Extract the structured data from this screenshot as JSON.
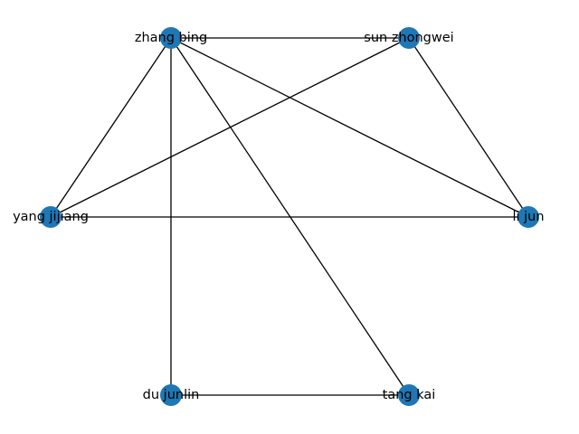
{
  "graph": {
    "node_color": "#1f77b4",
    "edge_color": "#000000",
    "nodes": [
      {
        "id": "zhang bing",
        "label": "zhang bing"
      },
      {
        "id": "sun zhongwei",
        "label": "sun zhongwei"
      },
      {
        "id": "yang jijiang",
        "label": "yang jijiang"
      },
      {
        "id": "li jun",
        "label": "li jun"
      },
      {
        "id": "du junlin",
        "label": "du junlin"
      },
      {
        "id": "tang kai",
        "label": "tang kai"
      }
    ],
    "edges": [
      {
        "source": "zhang bing",
        "target": "sun zhongwei"
      },
      {
        "source": "zhang bing",
        "target": "yang jijiang"
      },
      {
        "source": "zhang bing",
        "target": "li jun"
      },
      {
        "source": "zhang bing",
        "target": "du junlin"
      },
      {
        "source": "zhang bing",
        "target": "tang kai"
      },
      {
        "source": "sun zhongwei",
        "target": "yang jijiang"
      },
      {
        "source": "sun zhongwei",
        "target": "li jun"
      },
      {
        "source": "yang jijiang",
        "target": "li jun"
      },
      {
        "source": "du junlin",
        "target": "tang kai"
      }
    ]
  }
}
